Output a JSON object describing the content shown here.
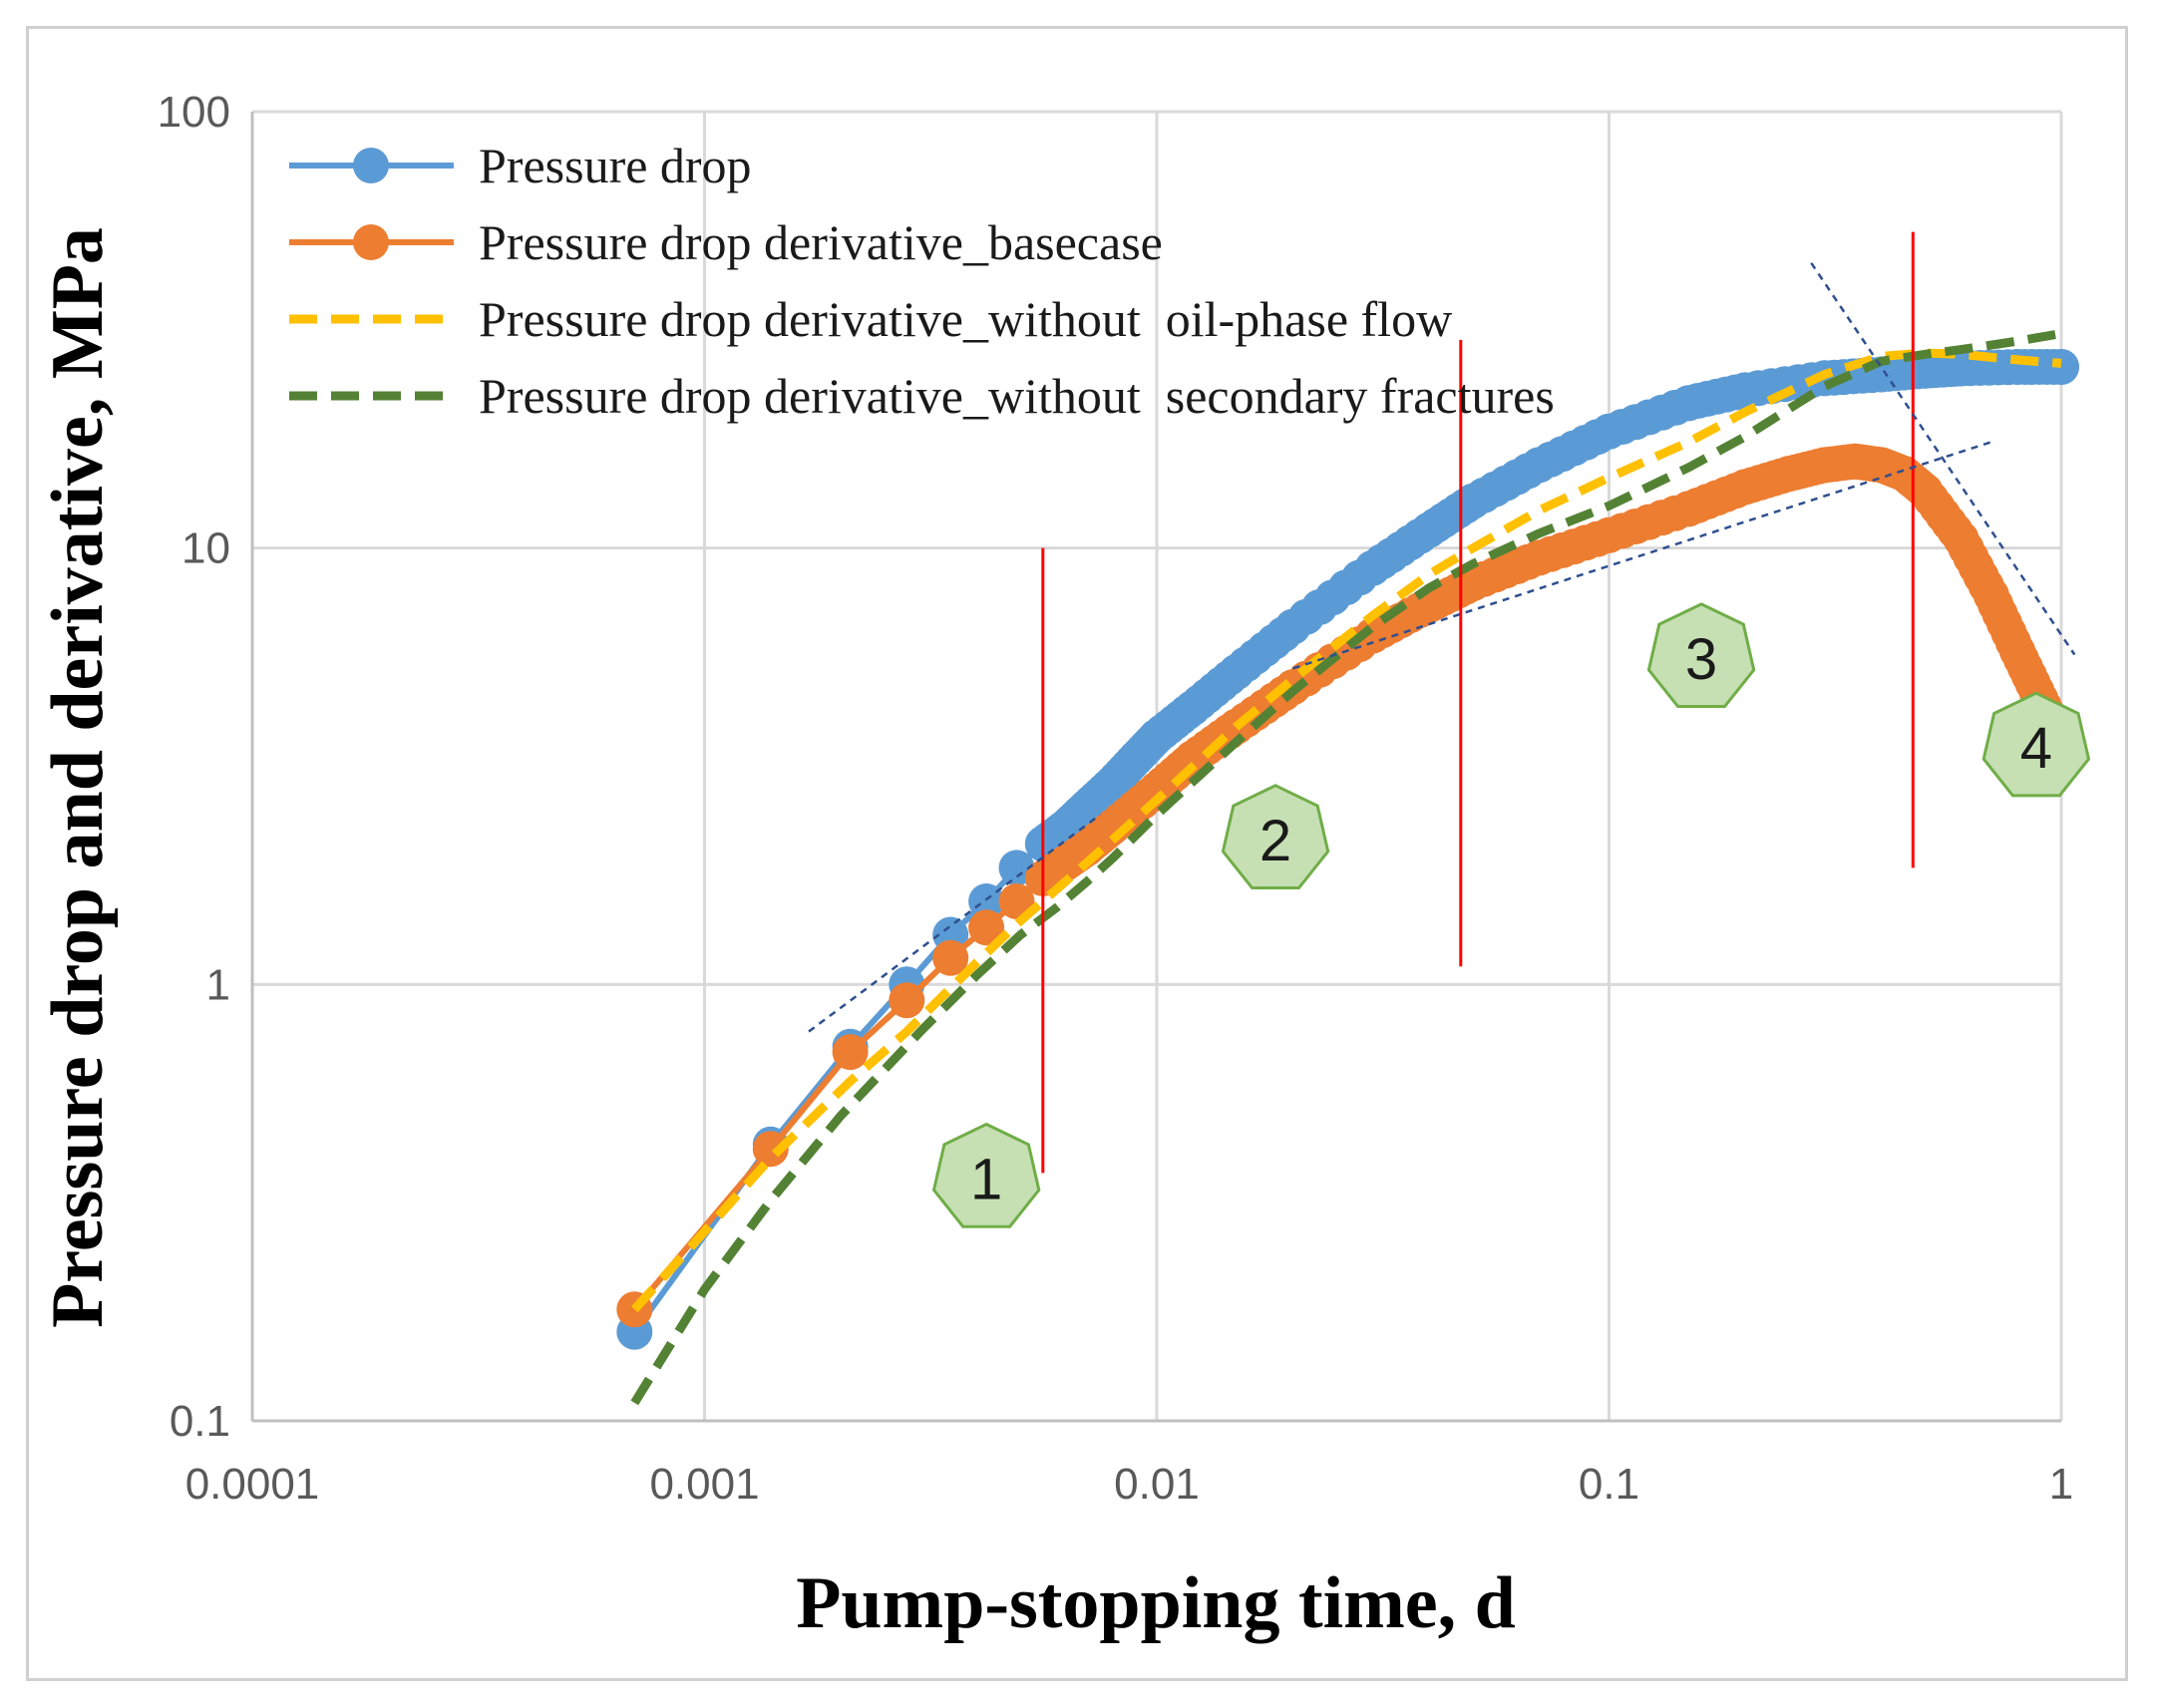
{
  "chart_data": {
    "type": "line",
    "xscale": "log",
    "yscale": "log",
    "xlim": [
      0.0001,
      1
    ],
    "ylim": [
      0.1,
      100
    ],
    "xlabel": "Pump-stopping time, d",
    "ylabel": "Pressure drop and derivative, MPa",
    "x_ticks": [
      {
        "value": 0.0001,
        "label": "0.0001"
      },
      {
        "value": 0.001,
        "label": "0.001"
      },
      {
        "value": 0.01,
        "label": "0.01"
      },
      {
        "value": 0.1,
        "label": "0.1"
      },
      {
        "value": 1,
        "label": "1"
      }
    ],
    "y_ticks": [
      {
        "value": 0.1,
        "label": "0.1"
      },
      {
        "value": 1,
        "label": "1"
      },
      {
        "value": 10,
        "label": "10"
      },
      {
        "value": 100,
        "label": "100"
      }
    ],
    "grid": true,
    "legend_position": "top-left",
    "series": [
      {
        "name": "Pressure drop",
        "color": "#5B9BD5",
        "style": "solid-markers",
        "x": [
          0.0007,
          0.0014,
          0.0021,
          0.0028,
          0.0035,
          0.0042,
          0.0049,
          0.0056,
          0.0063,
          0.007,
          0.008,
          0.009,
          0.01,
          0.012,
          0.015,
          0.02,
          0.03,
          0.04,
          0.05,
          0.07,
          0.1,
          0.15,
          0.2,
          0.3,
          0.4,
          0.5,
          0.6,
          0.8,
          1.0
        ],
        "y": [
          0.16,
          0.43,
          0.72,
          1.0,
          1.3,
          1.55,
          1.85,
          2.1,
          2.3,
          2.55,
          2.9,
          3.3,
          3.7,
          4.3,
          5.2,
          6.6,
          9.0,
          11.0,
          12.8,
          15.5,
          18.5,
          21.5,
          23.0,
          24.5,
          25.0,
          25.5,
          25.8,
          26.0,
          26.0
        ]
      },
      {
        "name": "Pressure drop derivative_basecase",
        "color": "#ED7D31",
        "style": "solid-markers",
        "x": [
          0.0007,
          0.0014,
          0.0021,
          0.0028,
          0.0035,
          0.0042,
          0.0049,
          0.0056,
          0.0063,
          0.007,
          0.008,
          0.01,
          0.012,
          0.015,
          0.02,
          0.03,
          0.04,
          0.05,
          0.07,
          0.1,
          0.15,
          0.2,
          0.25,
          0.3,
          0.35,
          0.4,
          0.45,
          0.5,
          0.6,
          0.7,
          0.8,
          0.9,
          1.0
        ],
        "y": [
          0.18,
          0.42,
          0.7,
          0.92,
          1.15,
          1.35,
          1.55,
          1.75,
          1.9,
          2.05,
          2.3,
          2.8,
          3.3,
          3.9,
          4.8,
          6.3,
          7.4,
          8.3,
          9.5,
          10.7,
          12.3,
          13.8,
          14.8,
          15.5,
          15.8,
          15.5,
          14.8,
          13.5,
          10.5,
          7.8,
          5.8,
          4.5,
          3.6
        ]
      },
      {
        "name": "Pressure drop derivative_without  oil-phase flow",
        "color": "#FFC000",
        "style": "dashed",
        "x": [
          0.0007,
          0.0014,
          0.0021,
          0.0028,
          0.0035,
          0.0042,
          0.005,
          0.006,
          0.007,
          0.008,
          0.01,
          0.015,
          0.02,
          0.03,
          0.04,
          0.05,
          0.07,
          0.1,
          0.15,
          0.2,
          0.3,
          0.4,
          0.5,
          0.6,
          0.8,
          1.0
        ],
        "y": [
          0.18,
          0.4,
          0.6,
          0.78,
          0.98,
          1.18,
          1.4,
          1.65,
          1.9,
          2.15,
          2.65,
          3.9,
          5.0,
          7.0,
          8.7,
          10.0,
          12.2,
          14.5,
          17.5,
          20.5,
          25.0,
          27.5,
          28.0,
          27.8,
          27.0,
          26.5
        ]
      },
      {
        "name": "Pressure drop derivative_without  secondary fractures",
        "color": "#548235",
        "style": "dashed",
        "x": [
          0.0007,
          0.001,
          0.0014,
          0.002,
          0.003,
          0.004,
          0.005,
          0.006,
          0.007,
          0.008,
          0.01,
          0.015,
          0.02,
          0.03,
          0.04,
          0.05,
          0.07,
          0.1,
          0.15,
          0.2,
          0.3,
          0.4,
          0.5,
          0.6,
          0.8,
          1.0
        ],
        "y": [
          0.11,
          0.2,
          0.32,
          0.5,
          0.78,
          1.05,
          1.3,
          1.5,
          1.72,
          1.95,
          2.45,
          3.6,
          4.7,
          6.6,
          8.1,
          9.2,
          10.8,
          12.5,
          15.3,
          18.0,
          23.5,
          26.8,
          27.8,
          28.5,
          29.8,
          31.0
        ]
      }
    ],
    "divider_lines": [
      {
        "x": 0.0056,
        "y_from": 0.37,
        "y_to": 10
      },
      {
        "x": 0.047,
        "y_from": 1.1,
        "y_to": 30
      },
      {
        "x": 0.47,
        "y_from": 1.85,
        "y_to": 53
      }
    ],
    "trend_lines": [
      {
        "x": [
          0.0017,
          0.0075
        ],
        "y": [
          0.78,
          2.45
        ]
      },
      {
        "x": [
          0.02,
          0.7
        ],
        "y": [
          5.3,
          17.5
        ]
      },
      {
        "x": [
          0.28,
          1.07
        ],
        "y": [
          45,
          5.7
        ]
      }
    ],
    "regions": [
      {
        "label": "1",
        "x": 0.0042,
        "y": 0.36
      },
      {
        "label": "2",
        "x": 0.0183,
        "y": 2.15
      },
      {
        "label": "3",
        "x": 0.16,
        "y": 5.6
      },
      {
        "label": "4",
        "x": 0.88,
        "y": 3.5
      }
    ]
  }
}
